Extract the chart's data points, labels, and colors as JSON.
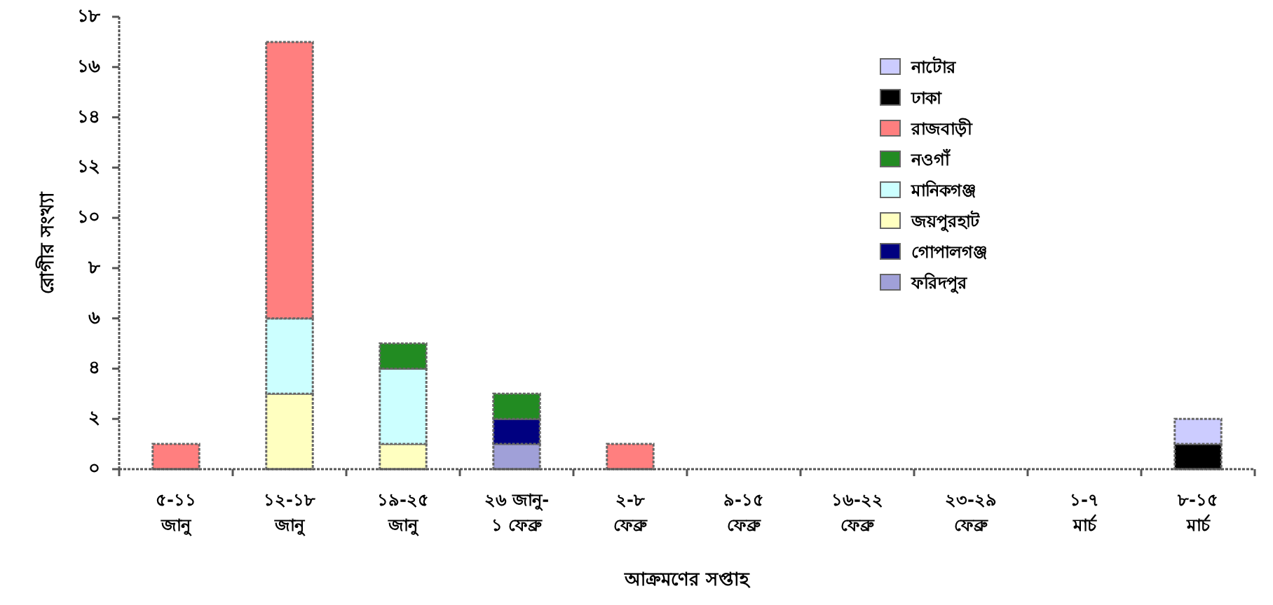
{
  "chart_data": {
    "type": "bar",
    "stacked": true,
    "xlabel": "আক্রমণের সপ্তাহ",
    "ylabel": "রোগীর সংখ্যা",
    "categories": [
      "৫-১১\nজানু",
      "১২-১৮\nজানু",
      "১৯-২৫\nজানু",
      "২৬ জানু-\n১ ফেব্রু",
      "২-৮\nফেব্রু",
      "৯-১৫\nফেব্রু",
      "১৬-২২\nফেব্রু",
      "২৩-২৯\nফেব্রু",
      "১-৭\nমার্চ",
      "৮-১৫\nমার্চ"
    ],
    "series": [
      {
        "name": "ফরিদপুর",
        "color": "#a0a0d8",
        "values": [
          null,
          null,
          null,
          1,
          null,
          null,
          null,
          null,
          null,
          null
        ]
      },
      {
        "name": "গোপালগঞ্জ",
        "color": "#000080",
        "values": [
          null,
          null,
          null,
          1,
          null,
          null,
          null,
          null,
          null,
          null
        ]
      },
      {
        "name": "জয়পুরহাট",
        "color": "#ffffc0",
        "values": [
          null,
          3,
          1,
          null,
          null,
          null,
          null,
          null,
          null,
          null
        ]
      },
      {
        "name": "মানিকগঞ্জ",
        "color": "#ccffff",
        "values": [
          null,
          3,
          3,
          null,
          null,
          null,
          null,
          null,
          null,
          null
        ]
      },
      {
        "name": "নওগাঁ",
        "color": "#228b22",
        "values": [
          null,
          null,
          1,
          1,
          null,
          null,
          null,
          null,
          null,
          null
        ]
      },
      {
        "name": "রাজবাড়ী",
        "color": "#ff7f7f",
        "values": [
          1,
          11,
          null,
          null,
          1,
          null,
          null,
          null,
          null,
          null
        ]
      },
      {
        "name": "ঢাকা",
        "color": "#000000",
        "values": [
          null,
          null,
          null,
          null,
          null,
          null,
          null,
          null,
          null,
          1
        ]
      },
      {
        "name": "নাটোর",
        "color": "#ccccff",
        "values": [
          null,
          null,
          null,
          null,
          null,
          null,
          null,
          null,
          null,
          1
        ]
      }
    ],
    "ylim": [
      0,
      18
    ],
    "yticks": [
      {
        "value": 0,
        "label": "০"
      },
      {
        "value": 2,
        "label": "২"
      },
      {
        "value": 4,
        "label": "৪"
      },
      {
        "value": 6,
        "label": "৬"
      },
      {
        "value": 8,
        "label": "৮"
      },
      {
        "value": 10,
        "label": "১০"
      },
      {
        "value": 12,
        "label": "১২"
      },
      {
        "value": 14,
        "label": "১৪"
      },
      {
        "value": 16,
        "label": "১৬"
      },
      {
        "value": 18,
        "label": "১৮"
      }
    ],
    "legend": "top right",
    "grid": false
  }
}
